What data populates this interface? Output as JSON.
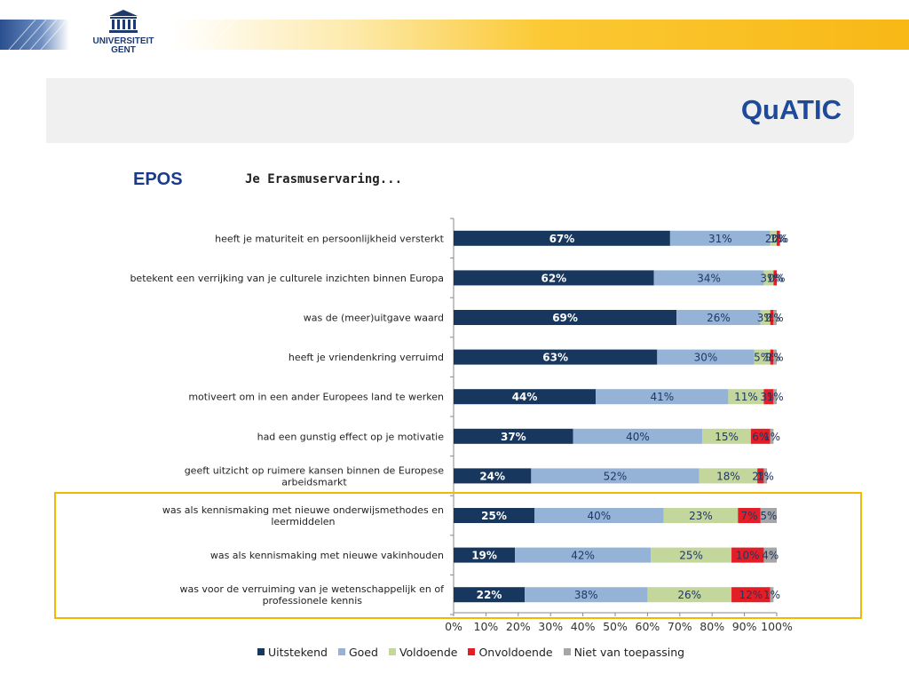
{
  "header": {
    "logo_lines": [
      "UNIVERSITEIT",
      "GENT"
    ],
    "app_title": "QuATIC"
  },
  "section_label": "EPOS",
  "chart_data": {
    "type": "bar",
    "orientation": "horizontal",
    "stacked": true,
    "percent_stacked": true,
    "title": "Je Erasmuservaring...",
    "xlabel": "",
    "ylabel": "",
    "xlim": [
      0,
      100
    ],
    "x_ticks": [
      "0%",
      "10%",
      "20%",
      "30%",
      "40%",
      "50%",
      "60%",
      "70%",
      "80%",
      "90%",
      "100%"
    ],
    "grid": false,
    "legend_position": "bottom",
    "categories": [
      "heeft je maturiteit en persoonlijkheid versterkt",
      "betekent een verrijking van je culturele inzichten binnen Europa",
      "was de (meer)uitgave waard",
      "heeft je vriendenkring verruimd",
      "motiveert om in een ander Europees land te werken",
      "had een gunstig effect op je motivatie",
      "geeft uitzicht op ruimere kansen binnen de Europese arbeidsmarkt",
      "was als kennismaking met nieuwe onderwijsmethodes en leermiddelen",
      "was als kennismaking met nieuwe vakinhouden",
      "was voor de verruiming van je wetenschappelijk en of professionele kennis"
    ],
    "category_lines": [
      [
        "heeft je maturiteit en persoonlijkheid versterkt"
      ],
      [
        "betekent een verrijking van je culturele inzichten binnen Europa"
      ],
      [
        "was de (meer)uitgave waard"
      ],
      [
        "heeft je vriendenkring verruimd"
      ],
      [
        "motiveert om in een ander Europees land te werken"
      ],
      [
        "had een gunstig effect op je motivatie"
      ],
      [
        "geeft uitzicht op ruimere kansen binnen de Europese",
        "arbeidsmarkt"
      ],
      [
        "was als kennismaking met nieuwe onderwijsmethodes en",
        "leermiddelen"
      ],
      [
        "was als kennismaking met nieuwe vakinhouden"
      ],
      [
        "was voor de verruiming van je wetenschappelijk en of",
        "professionele kennis"
      ]
    ],
    "series": [
      {
        "name": "Uitstekend",
        "color": "#17375e",
        "label_color": "#ffffff",
        "values": [
          67,
          62,
          69,
          63,
          44,
          37,
          24,
          25,
          19,
          22
        ]
      },
      {
        "name": "Goed",
        "color": "#95b3d7",
        "label_color": "#1f3864",
        "values": [
          31,
          34,
          26,
          30,
          41,
          40,
          52,
          40,
          42,
          38
        ]
      },
      {
        "name": "Voldoende",
        "color": "#c3d69b",
        "label_color": "#1f3864",
        "values": [
          2,
          3,
          3,
          5,
          11,
          15,
          18,
          23,
          25,
          26
        ]
      },
      {
        "name": "Onvoldoende",
        "color": "#e41e26",
        "label_color": "#1f3864",
        "values": [
          1,
          1,
          1,
          1,
          3,
          6,
          2,
          7,
          10,
          12
        ]
      },
      {
        "name": "Niet van toepassing",
        "color": "#a6a6a6",
        "label_color": "#1f3864",
        "values": [
          0,
          0,
          1,
          1,
          1,
          1,
          1,
          5,
          4,
          1
        ]
      }
    ],
    "highlighted_categories": [
      7,
      8,
      9
    ],
    "highlight_color": "#f5b800"
  }
}
